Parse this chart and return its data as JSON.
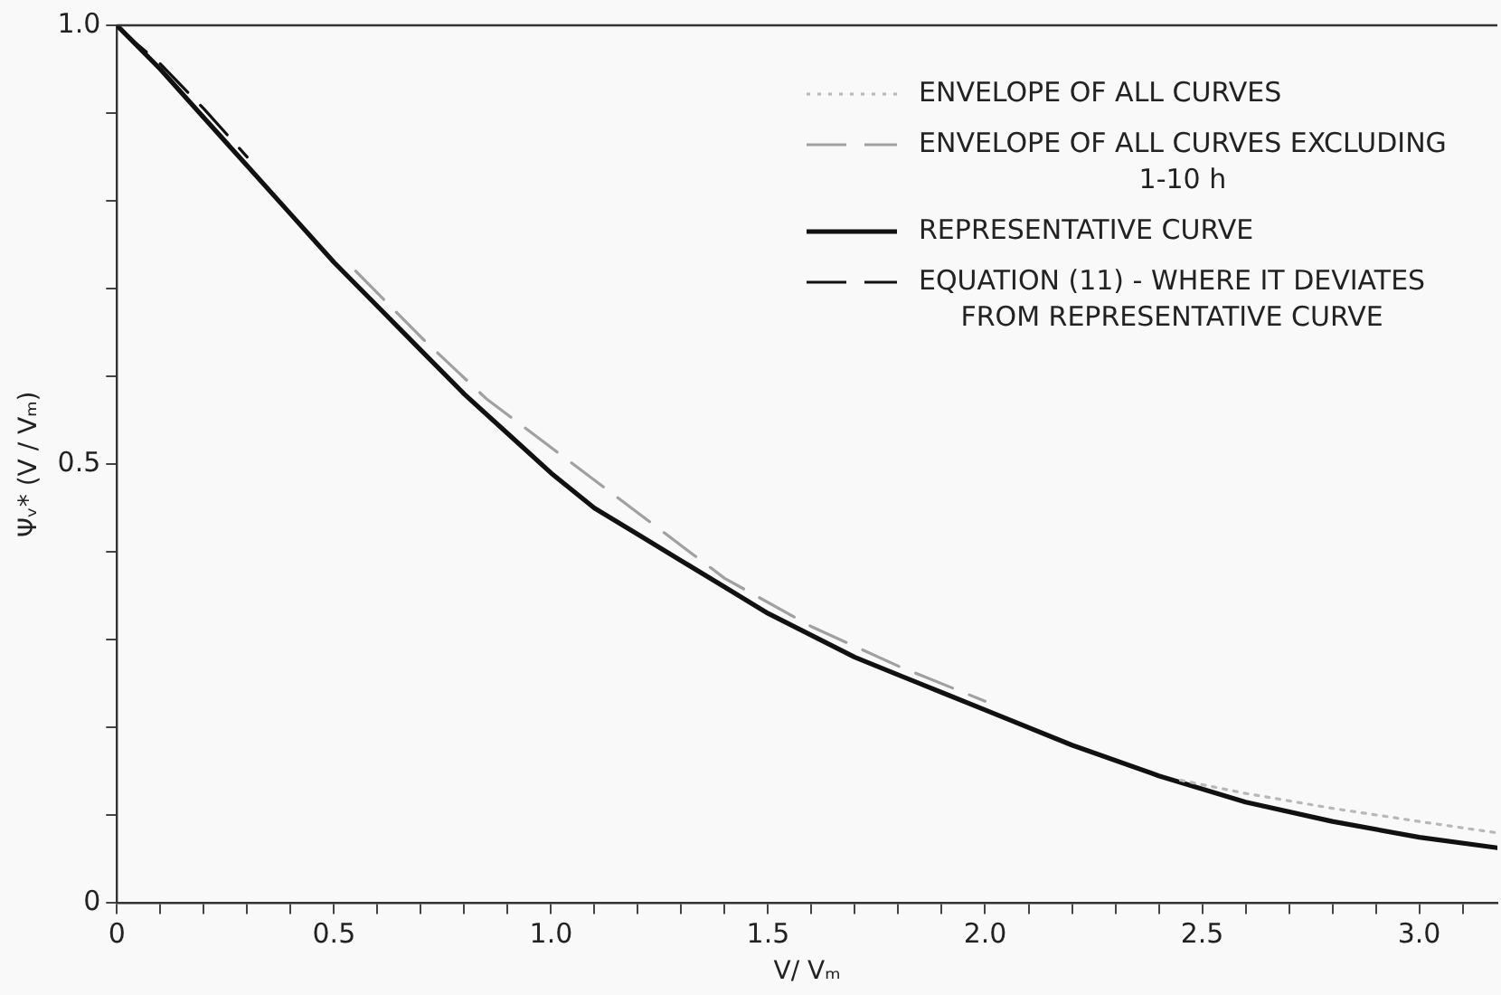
{
  "chart_data": {
    "type": "line",
    "xlabel": "V/ Vₘ",
    "ylabel": "Ψᵥ* (V / Vₘ)",
    "xlim": [
      0,
      3.18
    ],
    "ylim": [
      0,
      1.0
    ],
    "xticks": [
      0,
      {
        "value": 0.1,
        "label": null
      },
      {
        "value": 0.2,
        "label": null
      },
      {
        "value": 0.3,
        "label": null
      },
      {
        "value": 0.4,
        "label": null
      },
      {
        "value": 0.5,
        "label": "0.5"
      },
      {
        "value": 0.6,
        "label": null
      },
      {
        "value": 0.7,
        "label": null
      },
      {
        "value": 0.8,
        "label": null
      },
      {
        "value": 0.9,
        "label": null
      },
      {
        "value": 1.0,
        "label": "1.0"
      },
      {
        "value": 1.1,
        "label": null
      },
      {
        "value": 1.2,
        "label": null
      },
      {
        "value": 1.3,
        "label": null
      },
      {
        "value": 1.4,
        "label": null
      },
      {
        "value": 1.5,
        "label": "1.5"
      },
      {
        "value": 1.6,
        "label": null
      },
      {
        "value": 1.7,
        "label": null
      },
      {
        "value": 1.8,
        "label": null
      },
      {
        "value": 1.9,
        "label": null
      },
      {
        "value": 2.0,
        "label": "2.0"
      },
      {
        "value": 2.1,
        "label": null
      },
      {
        "value": 2.2,
        "label": null
      },
      {
        "value": 2.3,
        "label": null
      },
      {
        "value": 2.4,
        "label": null
      },
      {
        "value": 2.5,
        "label": "2.5"
      },
      {
        "value": 2.6,
        "label": null
      },
      {
        "value": 2.7,
        "label": null
      },
      {
        "value": 2.8,
        "label": null
      },
      {
        "value": 2.9,
        "label": null
      },
      {
        "value": 3.0,
        "label": "3.0"
      },
      {
        "value": 3.1,
        "label": null
      }
    ],
    "yticks": [
      0,
      {
        "value": 0.1,
        "label": null
      },
      {
        "value": 0.2,
        "label": null
      },
      {
        "value": 0.3,
        "label": null
      },
      {
        "value": 0.4,
        "label": null
      },
      {
        "value": 0.5,
        "label": "0.5"
      },
      {
        "value": 0.6,
        "label": null
      },
      {
        "value": 0.7,
        "label": null
      },
      {
        "value": 0.8,
        "label": null
      },
      {
        "value": 0.9,
        "label": null
      },
      {
        "value": 1.0,
        "label": "1.0"
      }
    ],
    "grid": false,
    "legend": "top right",
    "marker": "none",
    "series": [
      {
        "name": "ENVELOPE OF ALL CURVES",
        "color": "#b8b8b8",
        "line_style": "dotted",
        "x": [
          2.45,
          2.6,
          2.8,
          3.0,
          3.18
        ],
        "values": [
          0.14,
          0.125,
          0.108,
          0.093,
          0.08
        ]
      },
      {
        "name": "ENVELOPE OF ALL CURVES EXCLUDING 1-10 h",
        "color": "#a0a0a0",
        "line_style": "dashed",
        "x": [
          0.55,
          0.7,
          0.85,
          1.4,
          1.6,
          1.8,
          2.0
        ],
        "values": [
          0.72,
          0.645,
          0.575,
          0.37,
          0.315,
          0.27,
          0.23
        ]
      },
      {
        "name": "REPRESENTATIVE CURVE",
        "color": "#111111",
        "line_style": "solid",
        "x": [
          0,
          0.1,
          0.2,
          0.3,
          0.4,
          0.5,
          0.6,
          0.7,
          0.8,
          0.9,
          1.0,
          1.1,
          1.2,
          1.3,
          1.4,
          1.5,
          1.6,
          1.7,
          1.8,
          1.9,
          2.0,
          2.2,
          2.4,
          2.6,
          2.8,
          3.0,
          3.18
        ],
        "values": [
          1.0,
          0.95,
          0.895,
          0.84,
          0.785,
          0.73,
          0.68,
          0.63,
          0.58,
          0.535,
          0.49,
          0.45,
          0.42,
          0.39,
          0.36,
          0.33,
          0.305,
          0.28,
          0.26,
          0.24,
          0.22,
          0.18,
          0.145,
          0.115,
          0.093,
          0.075,
          0.063
        ]
      },
      {
        "name": "EQUATION (11) - WHERE IT DEVIATES FROM REPRESENTATIVE CURVE",
        "color": "#111111",
        "line_style": "dashed",
        "x": [
          0,
          0.05,
          0.1,
          0.2,
          0.3
        ],
        "values": [
          1.0,
          0.977,
          0.956,
          0.905,
          0.85
        ]
      }
    ]
  }
}
